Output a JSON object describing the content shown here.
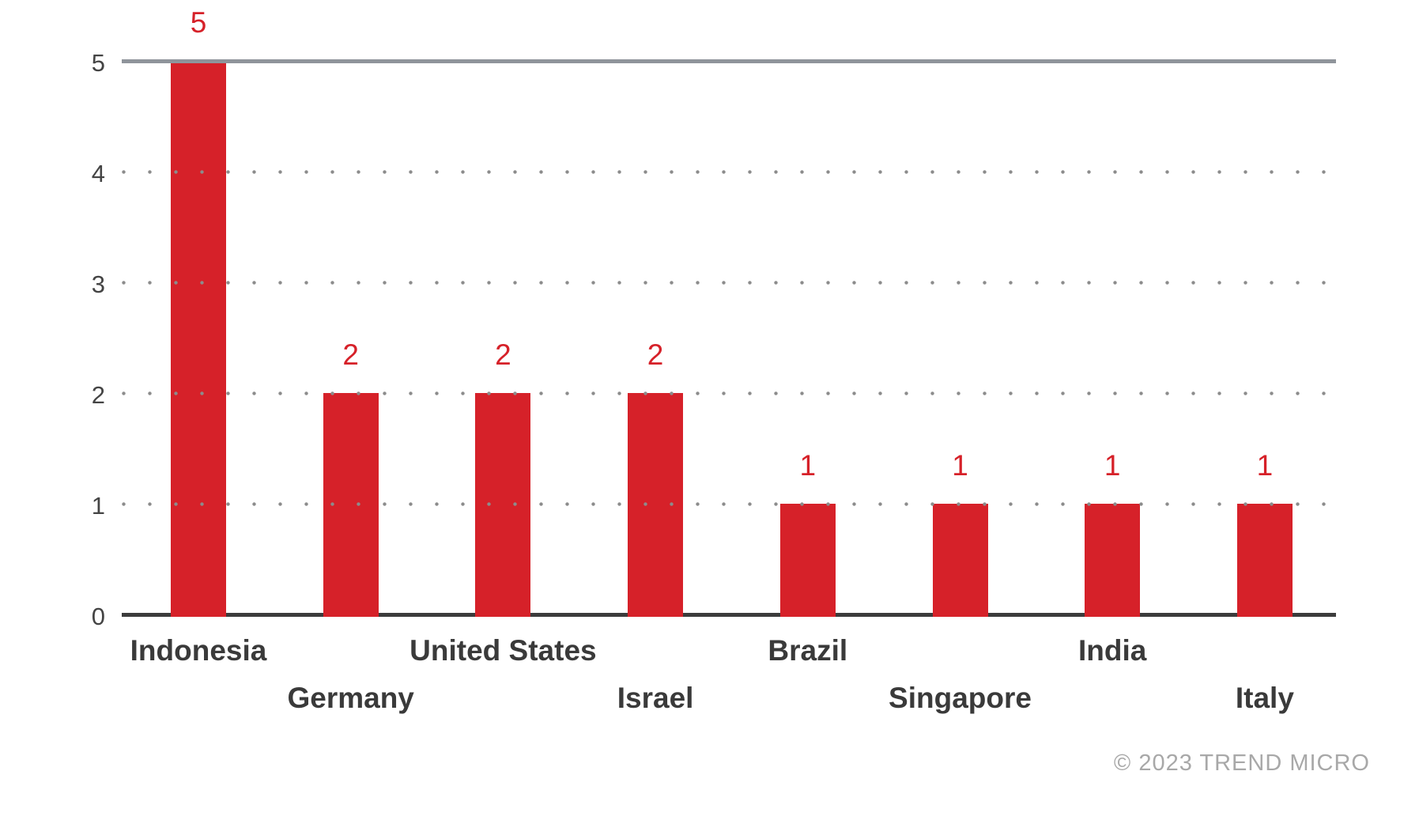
{
  "chart_data": {
    "type": "bar",
    "categories": [
      "Indonesia",
      "Germany",
      "United States",
      "Israel",
      "Brazil",
      "Singapore",
      "India",
      "Italy"
    ],
    "values": [
      5,
      2,
      2,
      2,
      1,
      1,
      1,
      1
    ],
    "title": "",
    "xlabel": "",
    "ylabel": "",
    "ylim": [
      0,
      5
    ],
    "yticks": [
      0,
      1,
      2,
      3,
      4,
      5
    ],
    "grid": "horizontal only; dotted gray lines at 1,2,3,4; solid gray line at 5; dark axis line at 0",
    "legend": "none",
    "value_labels_shown": true,
    "x_label_layout": "staggered two rows, alternating"
  },
  "footer": {
    "copyright_label": "© 2023 TREND MICRO"
  },
  "colors": {
    "bar": "#d62129",
    "value_label": "#d62129",
    "axis_line": "#3c3c3c",
    "top_gridline": "#8f949b",
    "dot_gridline": "#8c8c8c",
    "tick_label": "#444444",
    "category_label": "#3a3a3a",
    "watermark": "#a8a8a8",
    "background": "#ffffff"
  }
}
